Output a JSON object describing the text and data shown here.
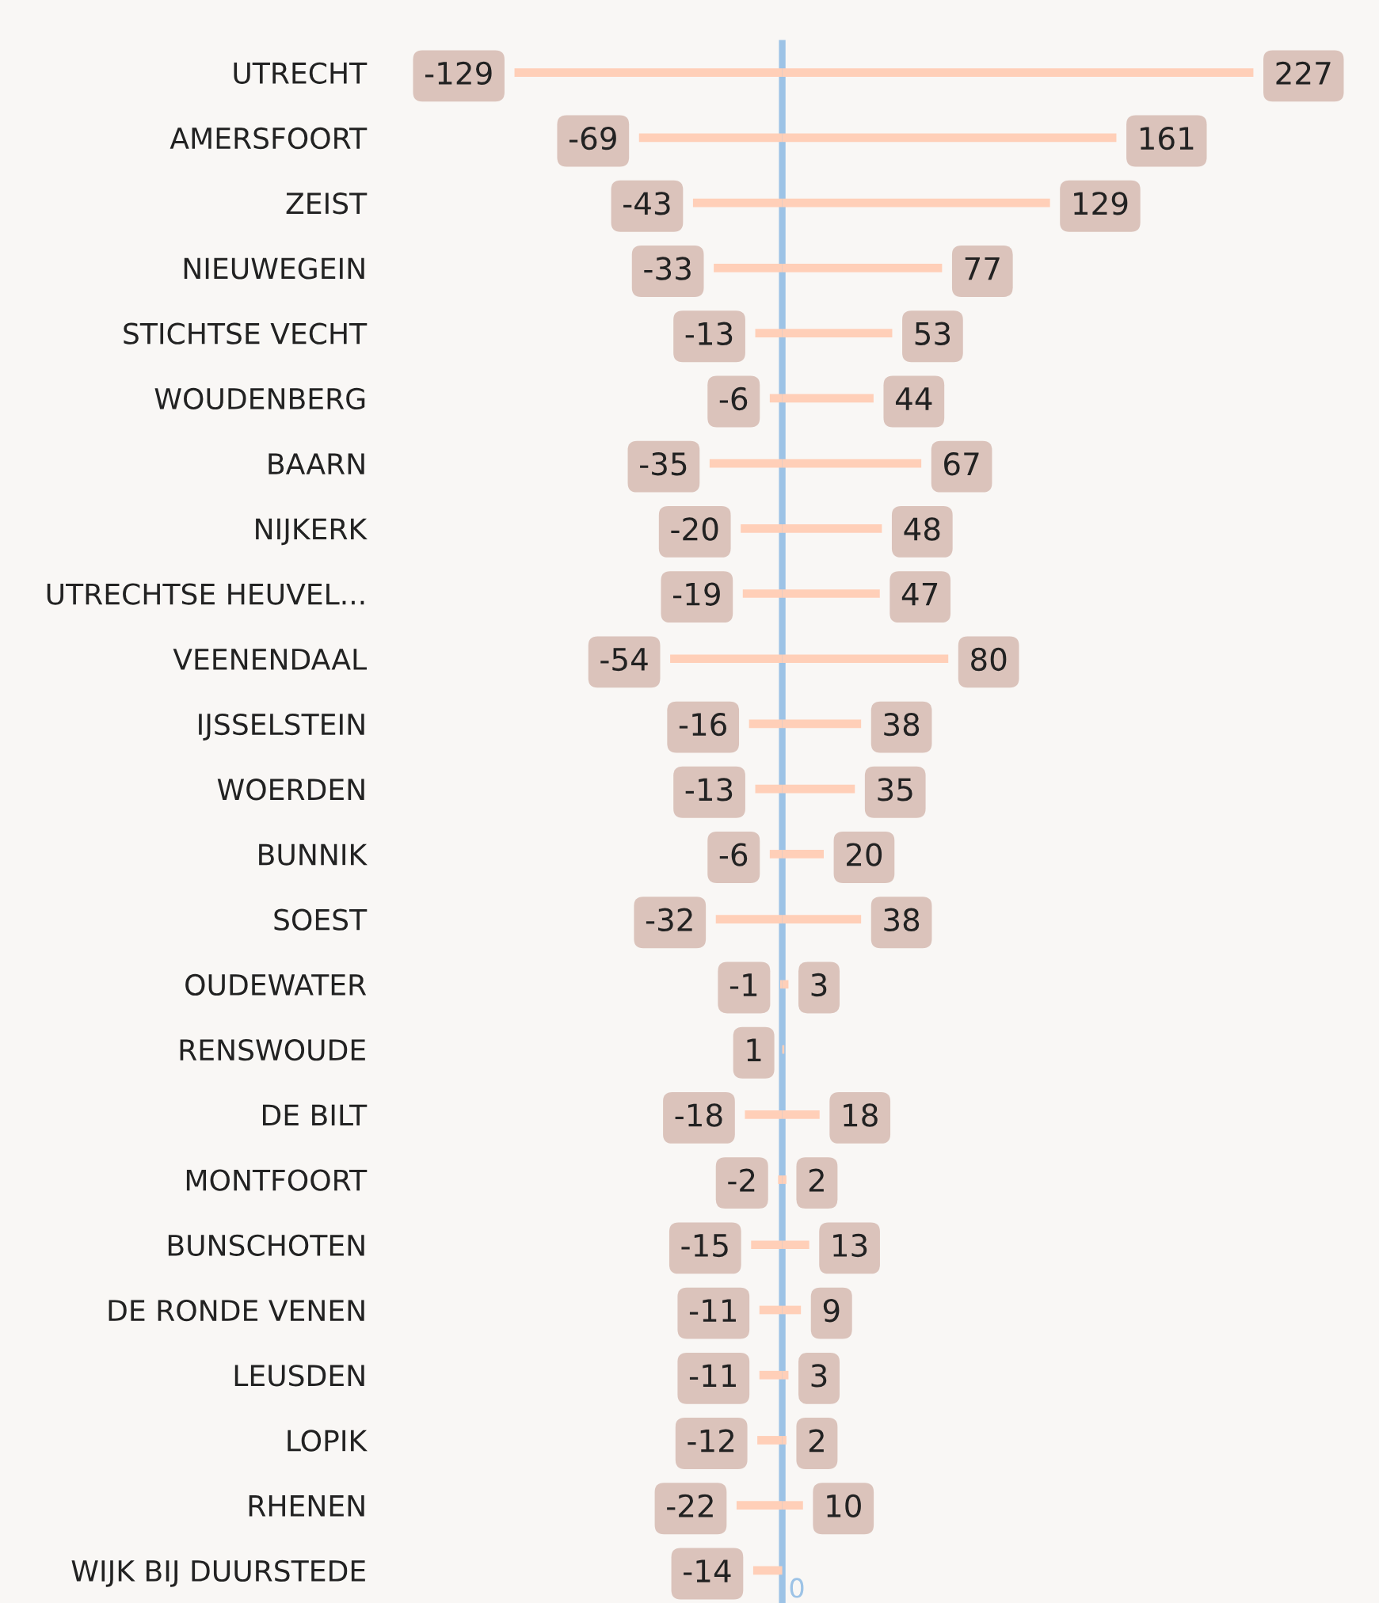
{
  "chart_data": {
    "type": "bar",
    "orientation": "horizontal",
    "categories": [
      "UTRECHT",
      "AMERSFOORT",
      "ZEIST",
      "NIEUWEGEIN",
      "STICHTSE VECHT",
      "WOUDENBERG",
      "BAARN",
      "NIJKERK",
      "UTRECHTSE HEUVEL...",
      "VEENENDAAL",
      "IJSSELSTEIN",
      "WOERDEN",
      "BUNNIK",
      "SOEST",
      "OUDEWATER",
      "RENSWOUDE",
      "DE BILT",
      "MONTFOORT",
      "BUNSCHOTEN",
      "DE RONDE VENEN",
      "LEUSDEN",
      "LOPIK",
      "RHENEN",
      "WIJK BIJ DUURSTEDE"
    ],
    "series": [
      {
        "color": "#ffcfb8",
        "values": [
          -129,
          -69,
          -43,
          -33,
          -13,
          -6,
          -35,
          -20,
          -19,
          -54,
          -16,
          -13,
          -6,
          -32,
          -1,
          1,
          -18,
          -2,
          -15,
          -11,
          -11,
          -12,
          -22,
          -14
        ]
      },
      {
        "color": "#ffcfb8",
        "values": [
          227,
          161,
          129,
          77,
          53,
          44,
          67,
          48,
          47,
          80,
          38,
          35,
          20,
          38,
          3,
          null,
          18,
          2,
          13,
          9,
          3,
          2,
          10,
          null
        ]
      }
    ],
    "stacked": true,
    "data_labels": true,
    "grid": false,
    "legend": false,
    "ref_lines": [
      {
        "axis": "x",
        "value": 0,
        "label": "0",
        "color": "#9dc3e6"
      }
    ]
  }
}
